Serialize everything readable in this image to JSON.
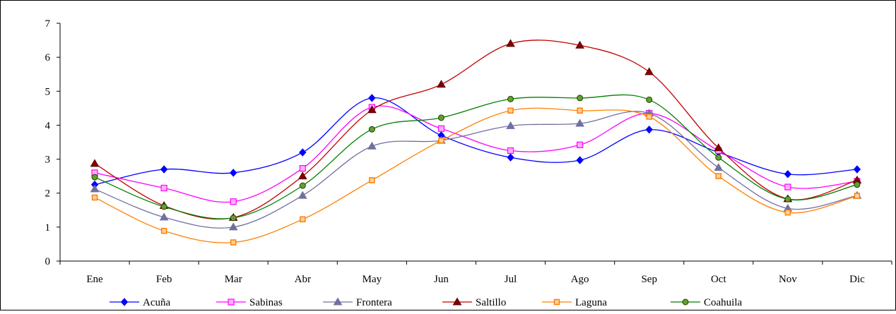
{
  "chart_data": {
    "type": "line",
    "title": "",
    "xlabel": "",
    "ylabel": "",
    "categories": [
      "Ene",
      "Feb",
      "Mar",
      "Abr",
      "May",
      "Jun",
      "Jul",
      "Ago",
      "Sep",
      "Oct",
      "Nov",
      "Dic"
    ],
    "ylim": [
      0,
      7
    ],
    "yticks": [
      "0",
      "1",
      "2",
      "3",
      "4",
      "5",
      "6",
      "7"
    ],
    "grid": false,
    "smooth": true,
    "legend_position": "bottom",
    "series": [
      {
        "name": "Acuña",
        "color": "#0000ff",
        "marker": "diamond",
        "values": [
          2.25,
          2.7,
          2.6,
          3.2,
          4.8,
          3.7,
          3.05,
          2.97,
          3.87,
          3.2,
          2.56,
          2.7
        ]
      },
      {
        "name": "Sabinas",
        "color": "#ff00ff",
        "marker": "square-open",
        "values": [
          2.6,
          2.15,
          1.75,
          2.73,
          4.53,
          3.9,
          3.25,
          3.42,
          4.35,
          3.25,
          2.18,
          2.35
        ]
      },
      {
        "name": "Frontera",
        "color": "#7070a0",
        "marker": "triangle",
        "values": [
          2.12,
          1.29,
          1.0,
          1.93,
          3.38,
          3.55,
          3.98,
          4.05,
          4.35,
          2.75,
          1.55,
          1.93
        ]
      },
      {
        "name": "Saltillo",
        "color": "#c00000",
        "marker": "triangle-dark",
        "values": [
          2.87,
          1.63,
          1.28,
          2.5,
          4.45,
          5.2,
          6.4,
          6.35,
          5.57,
          3.33,
          1.83,
          2.38
        ]
      },
      {
        "name": "Laguna",
        "color": "#ff8000",
        "marker": "square-small",
        "values": [
          1.87,
          0.89,
          0.55,
          1.23,
          2.38,
          3.55,
          4.43,
          4.43,
          4.25,
          2.5,
          1.43,
          1.92
        ]
      },
      {
        "name": "Coahuila",
        "color": "#008000",
        "marker": "circle",
        "values": [
          2.47,
          1.6,
          1.27,
          2.22,
          3.88,
          4.22,
          4.77,
          4.8,
          4.75,
          3.05,
          1.82,
          2.25
        ]
      }
    ]
  }
}
